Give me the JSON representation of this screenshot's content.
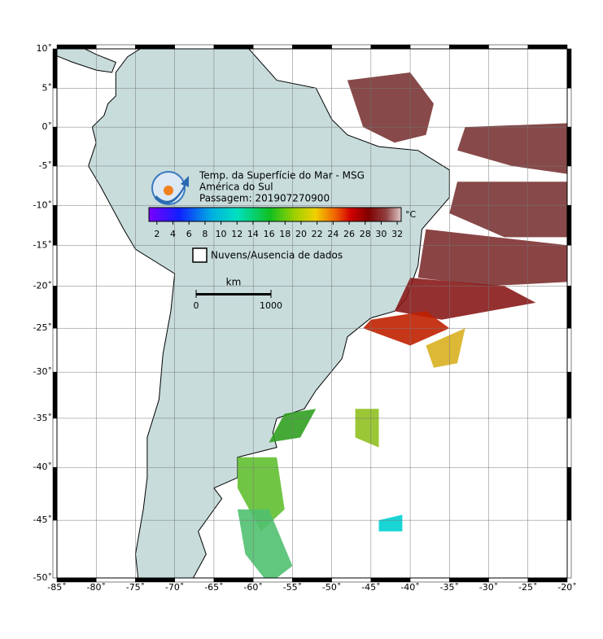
{
  "map": {
    "xlim": [
      -85,
      -20
    ],
    "ylim": [
      -50,
      10
    ],
    "xticks": [
      {
        "value": -85,
        "label": "-85˚"
      },
      {
        "value": -80,
        "label": "-80˚"
      },
      {
        "value": -75,
        "label": "-75˚"
      },
      {
        "value": -70,
        "label": "-70˚"
      },
      {
        "value": -65,
        "label": "-65˚"
      },
      {
        "value": -60,
        "label": "-60˚"
      },
      {
        "value": -55,
        "label": "-55˚"
      },
      {
        "value": -50,
        "label": "-50˚"
      },
      {
        "value": -45,
        "label": "-45˚"
      },
      {
        "value": -40,
        "label": "-40˚"
      },
      {
        "value": -35,
        "label": "-35˚"
      },
      {
        "value": -30,
        "label": "-30˚"
      },
      {
        "value": -25,
        "label": "-25˚"
      },
      {
        "value": -20,
        "label": "-20˚"
      }
    ],
    "yticks": [
      {
        "value": 10,
        "label": "10˚"
      },
      {
        "value": 5,
        "label": "5˚"
      },
      {
        "value": 0,
        "label": "0˚"
      },
      {
        "value": -5,
        "label": "-5˚"
      },
      {
        "value": -10,
        "label": "-10˚"
      },
      {
        "value": -15,
        "label": "-15˚"
      },
      {
        "value": -20,
        "label": "-20˚"
      },
      {
        "value": -25,
        "label": "-25˚"
      },
      {
        "value": -30,
        "label": "-30˚"
      },
      {
        "value": -35,
        "label": "-35˚"
      },
      {
        "value": -40,
        "label": "-40˚"
      },
      {
        "value": -45,
        "label": "-45˚"
      },
      {
        "value": -50,
        "label": "-50˚"
      }
    ],
    "grid": true
  },
  "title": {
    "lines": [
      "Temp. da Superfície do Mar - MSG",
      "América do Sul",
      "Passagem: 201907270900"
    ]
  },
  "colorbar": {
    "unit": "°C",
    "range": [
      1,
      32.5
    ],
    "ticks": [
      2,
      4,
      6,
      8,
      10,
      12,
      14,
      16,
      18,
      20,
      22,
      24,
      26,
      28,
      30,
      32
    ]
  },
  "legend": {
    "label": "Nuvens/Ausencia de dados"
  },
  "scale_bar": {
    "unit": "km",
    "ticks": [
      0,
      1000
    ]
  }
}
